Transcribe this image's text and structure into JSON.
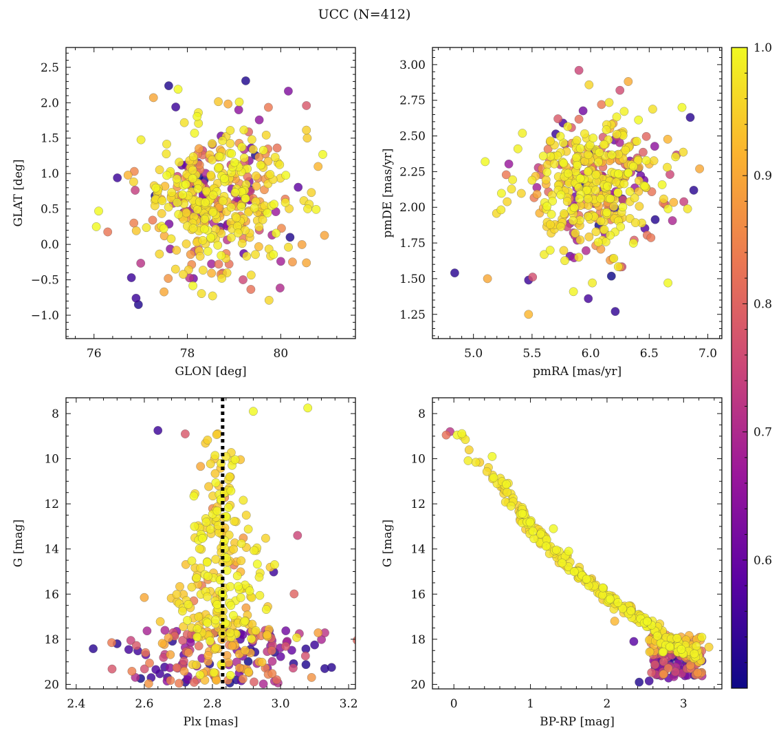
{
  "figure": {
    "title": "UCC (N=412)"
  },
  "colors": {
    "colormap": [
      "#0d0887",
      "#5b02a3",
      "#9a179b",
      "#cb4678",
      "#eb7852",
      "#fbb32f",
      "#f0f921"
    ],
    "axis": "#111111",
    "marker_edge": "#555555",
    "vline": "#000000"
  },
  "chart_data": [
    {
      "type": "scatter",
      "id": "glon_glat",
      "xlabel": "GLON [deg]",
      "ylabel": "GLAT [deg]",
      "xlim": [
        75.4,
        81.6
      ],
      "ylim": [
        -1.33,
        2.78
      ],
      "xticks": [
        76,
        78,
        80
      ],
      "yticks": [
        -1.0,
        -0.5,
        0.0,
        0.5,
        1.0,
        1.5,
        2.0,
        2.5
      ],
      "xtick_labels": [
        "76",
        "78",
        "80"
      ],
      "ytick_labels": [
        "−1.0",
        "−0.5",
        "0.0",
        "0.5",
        "1.0",
        "1.5",
        "2.0",
        "2.5"
      ],
      "x_center": 78.7,
      "x_spread": 0.8,
      "y_center": 0.62,
      "y_spread": 0.5,
      "seed": 11,
      "highlights": [
        {
          "x": 77.6,
          "y": 2.24,
          "c": 0.52
        },
        {
          "x": 79.25,
          "y": 2.31,
          "c": 0.52
        },
        {
          "x": 77.8,
          "y": 2.19,
          "c": 1.0
        },
        {
          "x": 77.75,
          "y": 1.94,
          "c": 0.55
        },
        {
          "x": 80.55,
          "y": 1.96,
          "c": 0.78
        },
        {
          "x": 79.1,
          "y": 1.9,
          "c": 0.65
        },
        {
          "x": 76.9,
          "y": -0.76,
          "c": 0.55
        },
        {
          "x": 76.95,
          "y": -0.85,
          "c": 0.52
        },
        {
          "x": 76.8,
          "y": -0.47,
          "c": 0.55
        },
        {
          "x": 77.5,
          "y": -0.67,
          "c": 0.9
        },
        {
          "x": 80.9,
          "y": 1.27,
          "c": 1.0
        },
        {
          "x": 80.8,
          "y": 1.1,
          "c": 0.92
        },
        {
          "x": 76.05,
          "y": 0.25,
          "c": 1.0
        },
        {
          "x": 76.1,
          "y": 0.47,
          "c": 1.0
        },
        {
          "x": 76.5,
          "y": 0.94,
          "c": 0.55
        },
        {
          "x": 80.0,
          "y": -0.24,
          "c": 0.68
        },
        {
          "x": 80.55,
          "y": -0.26,
          "c": 0.9
        },
        {
          "x": 80.2,
          "y": 0.1,
          "c": 0.52
        }
      ]
    },
    {
      "type": "scatter",
      "id": "pmra_pmde",
      "xlabel": "pmRA [mas/yr]",
      "ylabel": "pmDE [mas/yr]",
      "xlim": [
        4.65,
        7.12
      ],
      "ylim": [
        1.08,
        3.12
      ],
      "xticks": [
        5.0,
        5.5,
        6.0,
        6.5,
        7.0
      ],
      "yticks": [
        1.25,
        1.5,
        1.75,
        2.0,
        2.25,
        2.5,
        2.75,
        3.0
      ],
      "xtick_labels": [
        "5.0",
        "5.5",
        "6.0",
        "6.5",
        "7.0"
      ],
      "ytick_labels": [
        "1.25",
        "1.50",
        "1.75",
        "2.00",
        "2.25",
        "2.50",
        "2.75",
        "3.00"
      ],
      "x_center": 6.0,
      "x_spread": 0.3,
      "y_center": 2.12,
      "y_spread": 0.24,
      "seed": 23,
      "highlights": [
        {
          "x": 5.9,
          "y": 2.96,
          "c": 0.75
        },
        {
          "x": 6.25,
          "y": 2.82,
          "c": 0.76
        },
        {
          "x": 4.84,
          "y": 1.54,
          "c": 0.53
        },
        {
          "x": 5.47,
          "y": 1.25,
          "c": 0.92
        },
        {
          "x": 5.98,
          "y": 1.36,
          "c": 0.56
        },
        {
          "x": 6.21,
          "y": 1.27,
          "c": 0.54
        },
        {
          "x": 6.85,
          "y": 2.63,
          "c": 0.53
        },
        {
          "x": 6.78,
          "y": 2.7,
          "c": 1.0
        },
        {
          "x": 6.93,
          "y": 2.27,
          "c": 0.9
        },
        {
          "x": 6.66,
          "y": 1.47,
          "c": 1.0
        },
        {
          "x": 5.12,
          "y": 1.5,
          "c": 0.9
        },
        {
          "x": 5.1,
          "y": 2.32,
          "c": 1.0
        },
        {
          "x": 5.47,
          "y": 1.49,
          "c": 0.55
        },
        {
          "x": 6.88,
          "y": 2.12,
          "c": 0.53
        }
      ]
    },
    {
      "type": "scatter",
      "id": "plx_g",
      "xlabel": "Plx [mas]",
      "ylabel": "G [mag]",
      "xlim": [
        2.37,
        3.22
      ],
      "ylim": [
        20.2,
        7.3
      ],
      "xticks": [
        2.4,
        2.6,
        2.8,
        3.0,
        3.2
      ],
      "yticks": [
        8,
        10,
        12,
        14,
        16,
        18,
        20
      ],
      "xtick_labels": [
        "2.4",
        "2.6",
        "2.8",
        "3.0",
        "3.2"
      ],
      "ytick_labels": [
        "8",
        "10",
        "12",
        "14",
        "16",
        "18",
        "20"
      ],
      "vline": 2.83,
      "seed": 37,
      "highlights": [
        {
          "x": 3.08,
          "y": 7.75,
          "c": 1.0
        },
        {
          "x": 2.92,
          "y": 7.9,
          "c": 1.0
        },
        {
          "x": 2.64,
          "y": 8.75,
          "c": 0.55
        },
        {
          "x": 2.72,
          "y": 8.9,
          "c": 0.78
        },
        {
          "x": 2.45,
          "y": 18.42,
          "c": 0.53
        },
        {
          "x": 2.52,
          "y": 18.2,
          "c": 0.53
        },
        {
          "x": 3.15,
          "y": 19.25,
          "c": 0.53
        },
        {
          "x": 3.13,
          "y": 19.3,
          "c": 0.53
        },
        {
          "x": 3.1,
          "y": 18.25,
          "c": 0.55
        },
        {
          "x": 2.6,
          "y": 16.15,
          "c": 0.9
        },
        {
          "x": 3.05,
          "y": 13.4,
          "c": 0.75
        },
        {
          "x": 3.04,
          "y": 15.99,
          "c": 0.8
        },
        {
          "x": 2.98,
          "y": 15.02,
          "c": 0.55
        },
        {
          "x": 2.87,
          "y": 19.8,
          "c": 0.52
        },
        {
          "x": 2.72,
          "y": 19.9,
          "c": 0.52
        },
        {
          "x": 2.62,
          "y": 19.7,
          "c": 0.55
        }
      ]
    },
    {
      "type": "scatter",
      "id": "bprp_g",
      "xlabel": "BP-RP [mag]",
      "ylabel": "G [mag]",
      "xlim": [
        -0.28,
        3.5
      ],
      "ylim": [
        20.2,
        7.3
      ],
      "xticks": [
        0,
        1,
        2,
        3
      ],
      "yticks": [
        8,
        10,
        12,
        14,
        16,
        18,
        20
      ],
      "xtick_labels": [
        "0",
        "1",
        "2",
        "3"
      ],
      "ytick_labels": [
        "8",
        "10",
        "12",
        "14",
        "16",
        "18",
        "20"
      ],
      "sequence": [
        [
          -0.12,
          7.7
        ],
        [
          0.2,
          9.9
        ],
        [
          0.6,
          11.0
        ],
        [
          0.8,
          12.0
        ],
        [
          1.0,
          13.0
        ],
        [
          1.2,
          13.8
        ],
        [
          1.5,
          14.7
        ],
        [
          1.8,
          15.6
        ],
        [
          2.1,
          16.3
        ],
        [
          2.4,
          17.0
        ],
        [
          2.7,
          17.7
        ],
        [
          2.95,
          18.4
        ],
        [
          3.2,
          18.9
        ]
      ],
      "seed": 53,
      "highlights": [
        {
          "x": 0.5,
          "y": 9.9,
          "c": 1.0
        },
        {
          "x": 1.3,
          "y": 13.1,
          "c": 1.0
        },
        {
          "x": 1.5,
          "y": 14.1,
          "c": 1.0
        },
        {
          "x": 2.35,
          "y": 18.1,
          "c": 0.58
        },
        {
          "x": 3.33,
          "y": 18.35,
          "c": 0.95
        },
        {
          "x": 2.1,
          "y": 17.2,
          "c": 0.92
        },
        {
          "x": 2.42,
          "y": 19.9,
          "c": 0.52
        },
        {
          "x": 2.55,
          "y": 19.85,
          "c": 0.55
        },
        {
          "x": 3.22,
          "y": 18.95,
          "c": 0.75
        },
        {
          "x": 3.05,
          "y": 19.6,
          "c": 0.62
        },
        {
          "x": -0.05,
          "y": 8.8,
          "c": 0.72
        },
        {
          "x": -0.1,
          "y": 8.95,
          "c": 0.82
        }
      ]
    }
  ],
  "colorbar": {
    "vmin": 0.5,
    "vmax": 1.0,
    "ticks": [
      0.6,
      0.7,
      0.8,
      0.9,
      1.0
    ],
    "tick_labels": [
      "0.6",
      "0.7",
      "0.8",
      "0.9",
      "1.0"
    ]
  }
}
